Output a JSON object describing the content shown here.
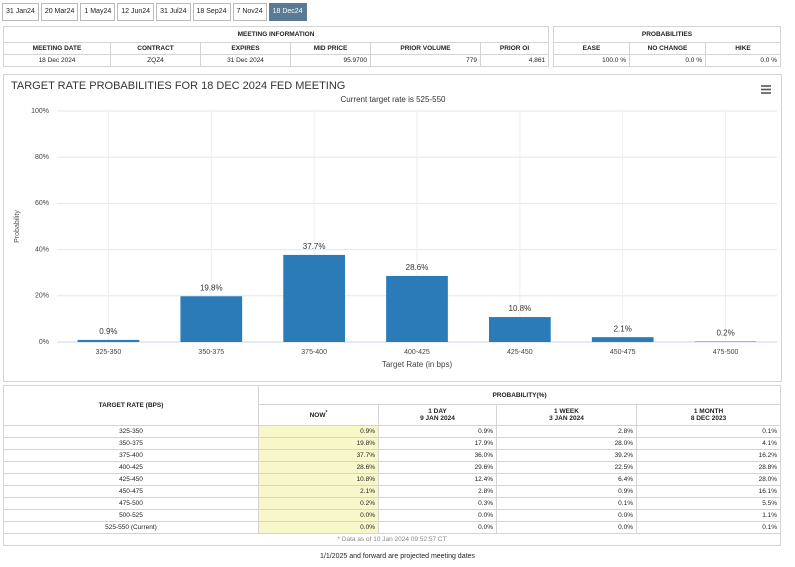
{
  "tabs": [
    "31 Jan24",
    "20 Mar24",
    "1 May24",
    "12 Jun24",
    "31 Jul24",
    "18 Sep24",
    "7 Nov24",
    "18 Dec24"
  ],
  "active_tab": 7,
  "meeting_info": {
    "title": "MEETING INFORMATION",
    "columns": [
      "MEETING DATE",
      "CONTRACT",
      "EXPIRES",
      "MID PRICE",
      "PRIOR VOLUME",
      "PRIOR OI"
    ],
    "row": [
      "18 Dec 2024",
      "ZQZ4",
      "31 Dec 2024",
      "95.9700",
      "779",
      "4,861"
    ]
  },
  "probabilities": {
    "title": "PROBABILITIES",
    "columns": [
      "EASE",
      "NO CHANGE",
      "HIKE"
    ],
    "row": [
      "100.0 %",
      "0.0 %",
      "0.0 %"
    ]
  },
  "chart_data": {
    "type": "bar",
    "title": "TARGET RATE PROBABILITIES FOR 18 DEC 2024 FED MEETING",
    "subtitle": "Current target rate is 525-550",
    "x_label": "Target Rate (in bps)",
    "y_label": "Probability",
    "categories": [
      "325-350",
      "350-375",
      "375-400",
      "400-425",
      "425-450",
      "450-475",
      "475-500"
    ],
    "values": [
      0.9,
      19.8,
      37.7,
      28.6,
      10.8,
      2.1,
      0.2
    ],
    "value_labels": [
      "0.9%",
      "19.8%",
      "37.7%",
      "28.6%",
      "10.8%",
      "2.1%",
      "0.2%"
    ],
    "color": "#2b7bb9",
    "ylim": [
      0,
      100
    ],
    "yticks": [
      {
        "value": 0,
        "label": "0%"
      },
      {
        "value": 20,
        "label": "20%"
      },
      {
        "value": 40,
        "label": "40%"
      },
      {
        "value": 60,
        "label": "60%"
      },
      {
        "value": 80,
        "label": "80%"
      },
      {
        "value": 100,
        "label": "100%"
      }
    ],
    "grid": true
  },
  "probability_table": {
    "row_header": "TARGET RATE (BPS)",
    "group_header": "PROBABILITY(%)",
    "columns": [
      {
        "label": "NOW",
        "note": "*"
      },
      {
        "label": "1 DAY",
        "date": "9 JAN 2024"
      },
      {
        "label": "1 WEEK",
        "date": "3 JAN 2024"
      },
      {
        "label": "1 MONTH",
        "date": "8 DEC 2023"
      }
    ],
    "rows": [
      [
        "325-350",
        "0.9%",
        "0.9%",
        "2.8%",
        "0.1%"
      ],
      [
        "350-375",
        "19.8%",
        "17.9%",
        "28.0%",
        "4.1%"
      ],
      [
        "375-400",
        "37.7%",
        "36.0%",
        "39.2%",
        "16.2%"
      ],
      [
        "400-425",
        "28.6%",
        "29.6%",
        "22.5%",
        "28.8%"
      ],
      [
        "425-450",
        "10.8%",
        "12.4%",
        "6.4%",
        "28.0%"
      ],
      [
        "450-475",
        "2.1%",
        "2.8%",
        "0.9%",
        "16.1%"
      ],
      [
        "475-500",
        "0.2%",
        "0.3%",
        "0.1%",
        "5.5%"
      ],
      [
        "500-525",
        "0.0%",
        "0.0%",
        "0.0%",
        "1.1%"
      ],
      [
        "525-550 (Current)",
        "0.0%",
        "0.0%",
        "0.0%",
        "0.1%"
      ]
    ],
    "footnote": "* Data as of 10 Jan 2024 09:52:57 CT"
  },
  "projection_note": "1/1/2025 and forward are projected meeting dates"
}
